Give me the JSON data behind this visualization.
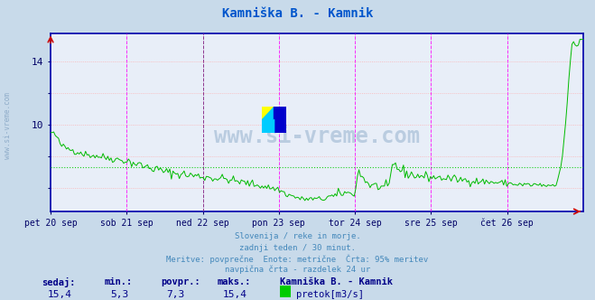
{
  "title": "Kamniška B. - Kamnik",
  "title_color": "#0055cc",
  "bg_color": "#c8daea",
  "plot_bg_color": "#e8eef8",
  "grid_h_color": "#ffaaaa",
  "grid_v_color": "#888888",
  "vline_color": "#ff00ff",
  "line_color": "#00bb00",
  "avg_line_color": "#00cc00",
  "x_labels": [
    "pet 20 sep",
    "sob 21 sep",
    "ned 22 sep",
    "pon 23 sep",
    "tor 24 sep",
    "sre 25 sep",
    "čet 26 sep"
  ],
  "x_label_color": "#000066",
  "y_label_color": "#000066",
  "ylim_min": 4.5,
  "ylim_max": 15.8,
  "avg_value": 7.3,
  "subtitle_lines": [
    "Slovenija / reke in morje.",
    "zadnji teden / 30 minut.",
    "Meritve: povprečne  Enote: metrične  Črta: 95% meritev",
    "navpična črta - razdelek 24 ur"
  ],
  "subtitle_color": "#4488bb",
  "bottom_labels": [
    "sedaj:",
    "min.:",
    "povpr.:",
    "maks.:"
  ],
  "bottom_values": [
    "15,4",
    "5,3",
    "7,3",
    "15,4"
  ],
  "bottom_station": "Kamniška B. - Kamnik",
  "bottom_unit": "pretok[m3/s]",
  "bottom_color": "#000088",
  "legend_color": "#00cc00",
  "watermark": "www.si-vreme.com",
  "watermark_color": "#5080aa",
  "left_watermark": "www.si-vreme.com",
  "left_watermark_color": "#7799bb"
}
